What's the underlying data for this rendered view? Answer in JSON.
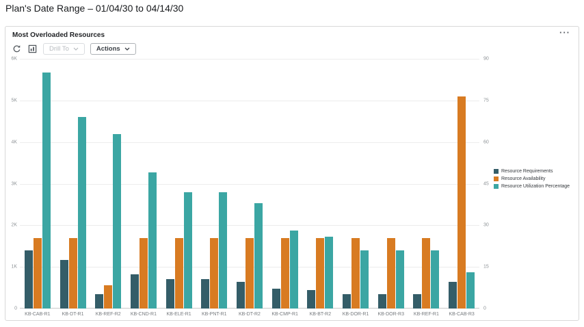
{
  "page": {
    "title": "Plan's Date Range – 01/04/30 to 04/14/30"
  },
  "card": {
    "title": "Most Overloaded Resources",
    "more_label": "···"
  },
  "toolbar": {
    "drill_to_label": "Drill To",
    "actions_label": "Actions",
    "icons": [
      "refresh-icon",
      "chart-view-icon"
    ]
  },
  "chart_data": {
    "type": "bar",
    "title": "Most Overloaded Resources",
    "legend_position": "right",
    "grid": true,
    "categories": [
      "KB-CAB-R1",
      "KB-DT-R1",
      "KB-REF-R2",
      "KB-CND-R1",
      "KB-ELE-R1",
      "KB-PNT-R1",
      "KB-DT-R2",
      "KB-CMP-R1",
      "KB-BT-R2",
      "KB-DOR-R1",
      "KB-DOR-R3",
      "KB-REF-R1",
      "KB-CAB-R3"
    ],
    "series": [
      {
        "name": "Resource Requirements",
        "axis": "left",
        "color": "#345d68",
        "values": [
          1400,
          1170,
          350,
          830,
          710,
          710,
          650,
          470,
          440,
          350,
          350,
          350,
          640
        ]
      },
      {
        "name": "Resource Availability",
        "axis": "left",
        "color": "#d87b22",
        "values": [
          1700,
          1700,
          560,
          1700,
          1700,
          1700,
          1700,
          1700,
          1700,
          1700,
          1700,
          1700,
          5100
        ]
      },
      {
        "name": "Resource Utilization Percentage",
        "axis": "right",
        "color": "#3ba6a3",
        "values": [
          85,
          69,
          63,
          49,
          42,
          42,
          38,
          28,
          26,
          21,
          21,
          21,
          13
        ]
      }
    ],
    "left_axis": {
      "max": 6000,
      "ticks_bottom_to_top": [
        "0",
        "1K",
        "2K",
        "3K",
        "4K",
        "5K",
        "6K"
      ]
    },
    "right_axis": {
      "max": 90,
      "ticks_bottom_to_top": [
        "0",
        "15",
        "30",
        "45",
        "60",
        "75",
        "90"
      ]
    }
  }
}
